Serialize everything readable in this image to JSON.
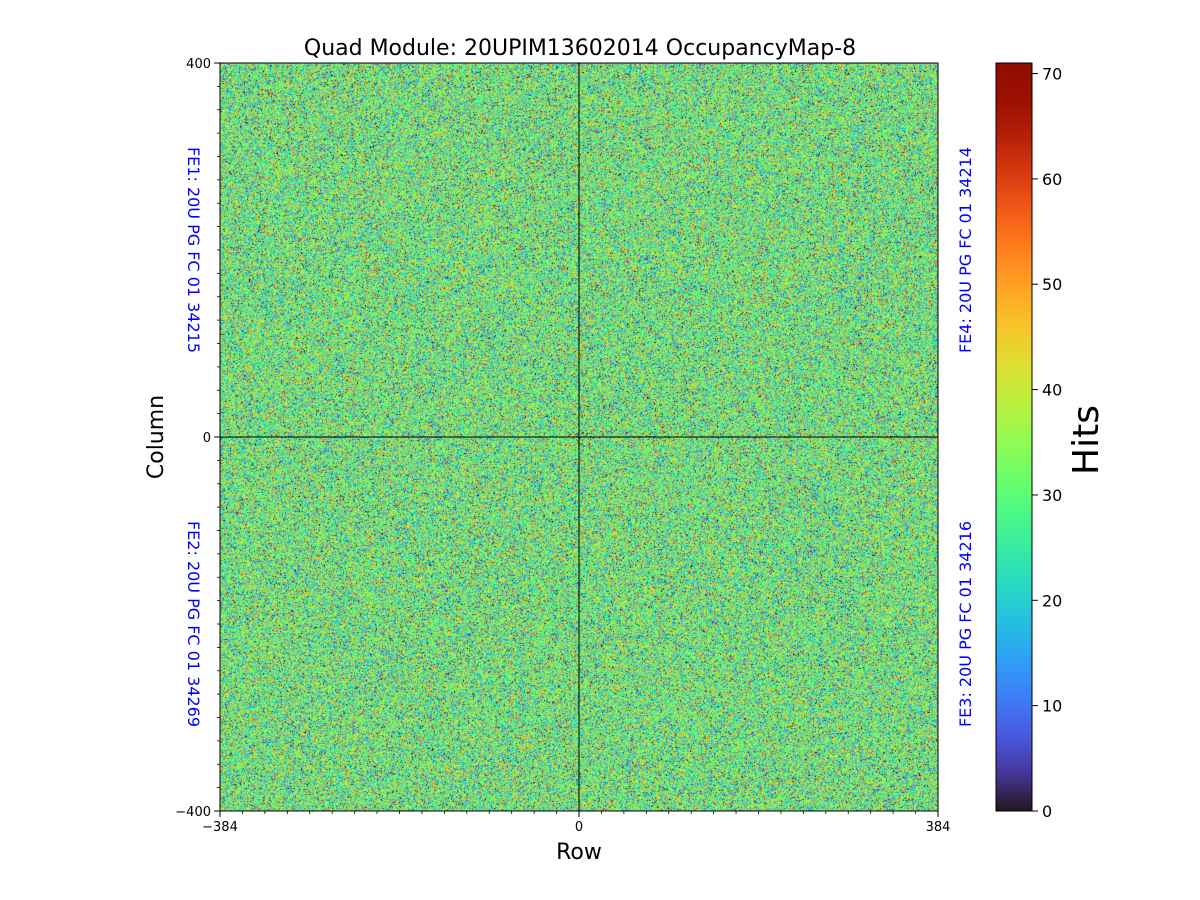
{
  "chart_data": {
    "type": "heatmap",
    "title": "Quad Module: 20UPIM13602014 OccupancyMap-8",
    "xlabel": "Row",
    "ylabel": "Column",
    "xlim": [
      -384,
      384
    ],
    "ylim": [
      -400,
      400
    ],
    "x_ticks": [
      {
        "value": -384,
        "label": "−384"
      },
      {
        "value": 0,
        "label": "0"
      },
      {
        "value": 384,
        "label": "384"
      }
    ],
    "y_ticks": [
      {
        "value": 400,
        "label": "400"
      },
      {
        "value": 0,
        "label": "0"
      },
      {
        "value": -400,
        "label": "−400"
      }
    ],
    "colorbar": {
      "label": "Hits",
      "range": [
        0,
        71
      ],
      "ticks": [
        {
          "value": 0,
          "label": "0"
        },
        {
          "value": 10,
          "label": "10"
        },
        {
          "value": 20,
          "label": "20"
        },
        {
          "value": 30,
          "label": "30"
        },
        {
          "value": 40,
          "label": "40"
        },
        {
          "value": 50,
          "label": "50"
        },
        {
          "value": 60,
          "label": "60"
        },
        {
          "value": 70,
          "label": "70"
        }
      ],
      "colormap": "turbo"
    },
    "distribution": {
      "description_values": "random occupancy, mean about 30 hits, min 0, max about 71",
      "mean": 30,
      "stdev": 13,
      "min": 0,
      "max": 71
    },
    "annotations": [
      {
        "id": "fe1",
        "text": "FE1: 20U PG FC 01 34215"
      },
      {
        "id": "fe2",
        "text": "FE2: 20U PG FC 01 34269"
      },
      {
        "id": "fe3",
        "text": "FE3: 20U PG FC 01 34216"
      },
      {
        "id": "fe4",
        "text": "FE4: 20U PG FC 01 34214"
      }
    ],
    "divider_lines": [
      {
        "axis": "x",
        "value": 0
      },
      {
        "axis": "y",
        "value": 0
      }
    ]
  },
  "colors": {
    "annotation": "#0000ff",
    "divider": "#000000"
  }
}
